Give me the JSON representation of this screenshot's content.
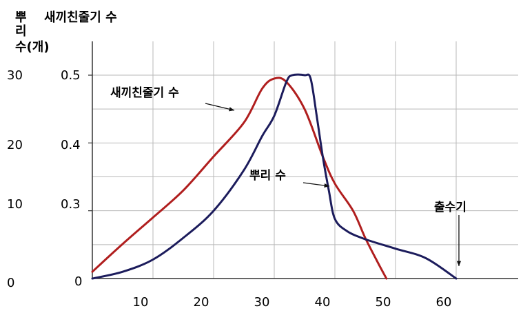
{
  "chart_data": {
    "type": "line",
    "ylabel_left": [
      "뿌",
      "리",
      "수(개)"
    ],
    "ylabel_right": "새끼친줄기 수",
    "x_ticks": [
      "10",
      "20",
      "30",
      "40",
      "50",
      "60"
    ],
    "y_ticks_roots": [
      "0",
      "10",
      "20",
      "30"
    ],
    "y_ticks_tillers": [
      "0",
      "0.3",
      "0.4",
      "0.5"
    ],
    "xlim": [
      0,
      70
    ],
    "ylim": [
      0.2,
      0.55
    ],
    "colors": {
      "tillers": "#b01e1e",
      "roots": "#1c1c5c"
    },
    "annotations": {
      "tillers": "새끼친줄기 수",
      "roots": "뿌리 수",
      "heading": "출수기"
    },
    "series": [
      {
        "key": "tillers",
        "values": [
          [
            0,
            0.21
          ],
          [
            5,
            0.251
          ],
          [
            10,
            0.29
          ],
          [
            15,
            0.33
          ],
          [
            20,
            0.38
          ],
          [
            25,
            0.43
          ],
          [
            28,
            0.48
          ],
          [
            30,
            0.495
          ],
          [
            32,
            0.49
          ],
          [
            35,
            0.45
          ],
          [
            38,
            0.38
          ],
          [
            40,
            0.34
          ],
          [
            43,
            0.3
          ],
          [
            45,
            0.26
          ],
          [
            47,
            0.225
          ],
          [
            48.5,
            0.2
          ]
        ]
      },
      {
        "key": "roots",
        "values": [
          [
            0,
            0.2
          ],
          [
            5,
            0.21
          ],
          [
            10,
            0.228
          ],
          [
            15,
            0.26
          ],
          [
            20,
            0.3
          ],
          [
            25,
            0.36
          ],
          [
            28,
            0.41
          ],
          [
            30,
            0.44
          ],
          [
            32,
            0.49
          ],
          [
            33,
            0.5
          ],
          [
            35,
            0.5
          ],
          [
            36,
            0.495
          ],
          [
            37,
            0.44
          ],
          [
            38,
            0.38
          ],
          [
            39,
            0.33
          ],
          [
            40,
            0.288
          ],
          [
            42,
            0.27
          ],
          [
            45,
            0.258
          ],
          [
            50,
            0.244
          ],
          [
            55,
            0.23
          ],
          [
            60,
            0.2
          ]
        ]
      }
    ]
  }
}
